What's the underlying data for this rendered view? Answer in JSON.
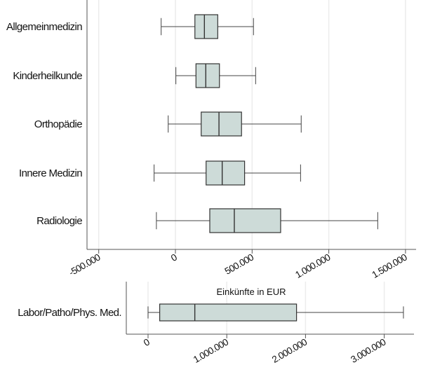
{
  "chart_data": [
    {
      "type": "boxplot",
      "orientation": "horizontal",
      "xlim": [
        -560000,
        1560000
      ],
      "xticks": [
        -500000,
        0,
        500000,
        1000000,
        1500000
      ],
      "xtick_labels": [
        "-500.000",
        "0",
        "500.000",
        "1.000.000",
        "1.500.000"
      ],
      "grid": true,
      "box_color": "#cddbd8",
      "categories": [
        "Allgemeinmedizin",
        "Kinderheilkunde",
        "Orthopädie",
        "Innere Medizin",
        "Radiologie"
      ],
      "boxes": [
        {
          "whisker_low": -93000,
          "q1": 127000,
          "median": 189000,
          "q3": 276000,
          "whisker_high": 509000
        },
        {
          "whisker_low": 3000,
          "q1": 134000,
          "median": 198000,
          "q3": 287000,
          "whisker_high": 523000
        },
        {
          "whisker_low": -47000,
          "q1": 168000,
          "median": 284000,
          "q3": 431000,
          "whisker_high": 820000
        },
        {
          "whisker_low": -139000,
          "q1": 200000,
          "median": 305000,
          "q3": 451000,
          "whisker_high": 816000
        },
        {
          "whisker_low": -124000,
          "q1": 224000,
          "median": 384000,
          "q3": 686000,
          "whisker_high": 1319000
        }
      ]
    },
    {
      "type": "boxplot",
      "orientation": "horizontal",
      "title": "Einkünfte in EUR",
      "xlim": [
        -280000,
        3640000
      ],
      "xticks": [
        0,
        1000000,
        2000000,
        3000000
      ],
      "xtick_labels": [
        "0",
        "1.000.000",
        "2.000.000",
        "3.000.000"
      ],
      "grid": true,
      "box_color": "#cddbd8",
      "categories": [
        "Labor/Patho/Phys. Med."
      ],
      "boxes": [
        {
          "whisker_low": 0,
          "q1": 148000,
          "median": 594000,
          "q3": 1886000,
          "whisker_high": 3244000
        }
      ]
    }
  ]
}
